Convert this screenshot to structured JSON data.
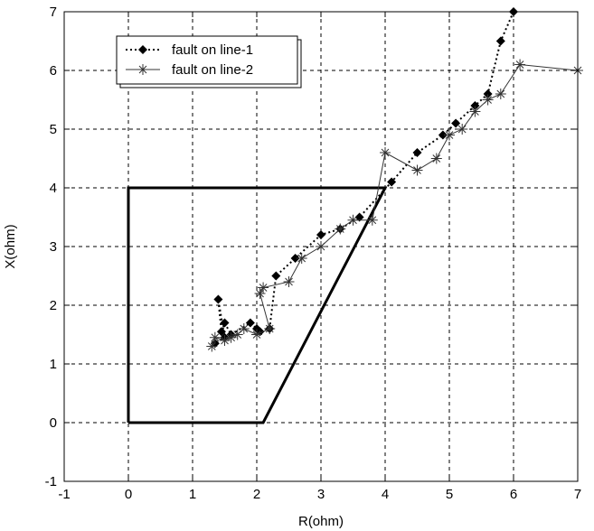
{
  "chart_data": {
    "type": "line",
    "xlabel": "R(ohm)",
    "ylabel": "X(ohm)",
    "xlim": [
      -1,
      7
    ],
    "ylim": [
      -1,
      7
    ],
    "xticks": [
      -1,
      0,
      1,
      2,
      3,
      4,
      5,
      6,
      7
    ],
    "yticks": [
      -1,
      0,
      1,
      2,
      3,
      4,
      5,
      6,
      7
    ],
    "grid": true,
    "legend_position": "top-left",
    "series": [
      {
        "name": "fault on line-1",
        "style": "dotted",
        "marker": "diamond",
        "color": "#000000",
        "x": [
          6.0,
          5.8,
          5.6,
          5.4,
          5.1,
          4.9,
          4.5,
          4.1,
          3.6,
          3.3,
          3.0,
          2.6,
          2.3,
          2.2,
          2.05,
          2.0,
          1.9,
          1.6,
          1.5,
          1.45,
          1.4,
          1.5,
          1.35
        ],
        "y": [
          7.0,
          6.5,
          5.6,
          5.4,
          5.1,
          4.9,
          4.6,
          4.1,
          3.5,
          3.3,
          3.2,
          2.8,
          2.5,
          1.6,
          1.55,
          1.6,
          1.7,
          1.5,
          1.7,
          1.55,
          2.1,
          1.45,
          1.35
        ]
      },
      {
        "name": "fault on line-2",
        "style": "solid",
        "marker": "asterisk",
        "color": "#333333",
        "x": [
          7.0,
          6.1,
          5.8,
          5.6,
          5.4,
          5.2,
          5.0,
          4.8,
          4.5,
          4.0,
          3.8,
          3.5,
          3.3,
          3.0,
          2.7,
          2.5,
          2.1,
          2.05,
          2.2,
          2.0,
          1.8,
          1.7,
          1.6,
          1.5,
          1.35,
          1.3
        ],
        "y": [
          6.0,
          6.1,
          5.6,
          5.5,
          5.3,
          5.0,
          4.9,
          4.5,
          4.3,
          4.6,
          3.45,
          3.45,
          3.3,
          3.0,
          2.8,
          2.4,
          2.3,
          2.2,
          1.6,
          1.5,
          1.6,
          1.5,
          1.45,
          1.4,
          1.45,
          1.3
        ]
      }
    ],
    "zone_boundary": {
      "x": [
        0,
        0,
        4,
        2.1,
        0
      ],
      "y": [
        0,
        4,
        4,
        0,
        0
      ]
    }
  }
}
